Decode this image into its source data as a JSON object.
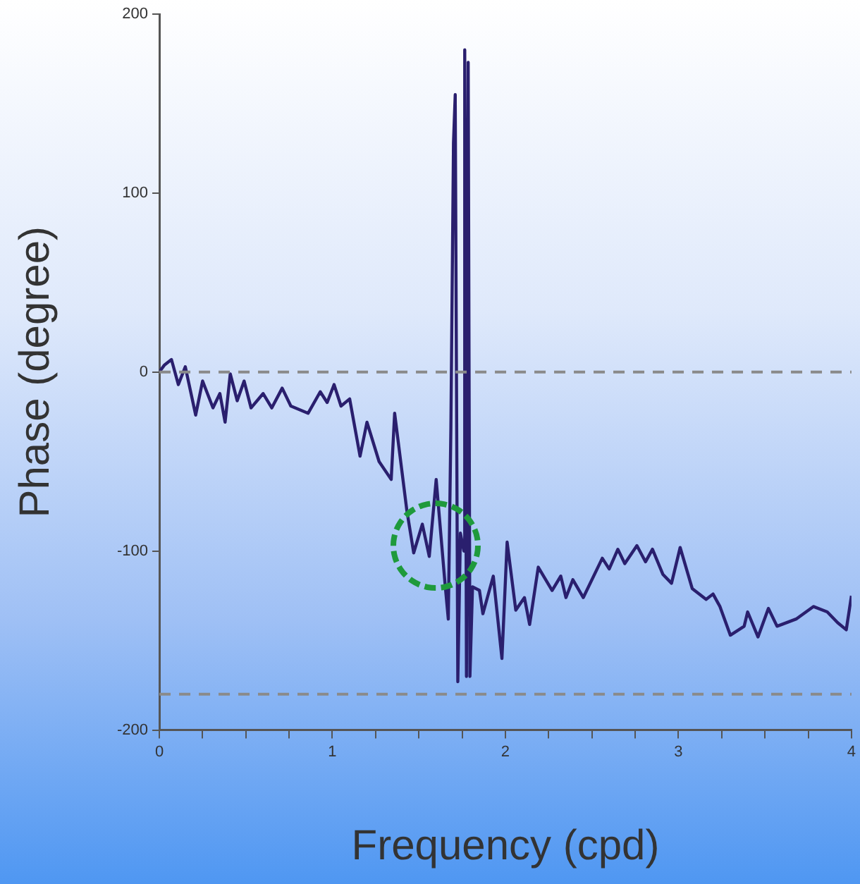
{
  "chart_data": {
    "type": "line",
    "xlabel": "Frequency (cpd)",
    "ylabel": "Phase (degree)",
    "xlim": [
      0,
      4
    ],
    "xticks": [
      0,
      {
        "value": 0.25,
        "label": null
      },
      {
        "value": 0.5,
        "label": null
      },
      {
        "value": 0.75,
        "label": null
      },
      1,
      {
        "value": 1.25,
        "label": null
      },
      {
        "value": 1.5,
        "label": null
      },
      {
        "value": 1.75,
        "label": null
      },
      2,
      {
        "value": 2.25,
        "label": null
      },
      {
        "value": 2.5,
        "label": null
      },
      {
        "value": 2.75,
        "label": null
      },
      3,
      {
        "value": 3.25,
        "label": null
      },
      {
        "value": 3.5,
        "label": null
      },
      {
        "value": 3.75,
        "label": null
      },
      4
    ],
    "ylim": [
      -200,
      200
    ],
    "yticks": [
      -200,
      -100,
      0,
      100,
      200
    ],
    "grid": false,
    "legend": false,
    "marker": "none",
    "line_style": "solid",
    "ref_lines": [
      {
        "axis": "y",
        "value": 0,
        "color": "#8a8a8a",
        "line_style": "dashed"
      },
      {
        "axis": "y",
        "value": -180,
        "color": "#8a8a8a",
        "line_style": "dashed"
      }
    ],
    "series": [
      {
        "color": "#2a1f6e",
        "x": [
          0,
          0.03,
          0.07,
          0.11,
          0.15,
          0.21,
          0.25,
          0.31,
          0.35,
          0.38,
          0.41,
          0.45,
          0.49,
          0.53,
          0.6,
          0.65,
          0.71,
          0.76,
          0.86,
          0.93,
          0.97,
          1.01,
          1.05,
          1.1,
          1.16,
          1.2,
          1.27,
          1.34,
          1.36,
          1.43,
          1.47,
          1.52,
          1.56,
          1.6,
          1.65,
          1.67,
          1.685,
          1.7,
          1.71,
          1.725,
          1.74,
          1.76,
          1.765,
          1.775,
          1.785,
          1.795,
          1.81,
          1.85,
          1.87,
          1.93,
          1.98,
          2.01,
          2.06,
          2.11,
          2.14,
          2.19,
          2.27,
          2.32,
          2.35,
          2.39,
          2.45,
          2.56,
          2.6,
          2.65,
          2.69,
          2.76,
          2.81,
          2.85,
          2.91,
          2.96,
          3.01,
          3.08,
          3.16,
          3.2,
          3.24,
          3.3,
          3.38,
          3.4,
          3.46,
          3.52,
          3.57,
          3.68,
          3.78,
          3.86,
          3.92,
          3.97,
          4.0
        ],
        "values": [
          0,
          4,
          7,
          -7,
          3,
          -24,
          -5,
          -20,
          -12,
          -28,
          -1,
          -16,
          -5,
          -20,
          -12,
          -20,
          -9,
          -19,
          -23,
          -11,
          -17,
          -7,
          -19,
          -15,
          -47,
          -28,
          -50,
          -60,
          -23,
          -77,
          -101,
          -85,
          -103,
          -60,
          -117,
          -138,
          -31,
          128,
          155,
          -173,
          -90,
          -100,
          180,
          -170,
          173,
          -170,
          -120,
          -122,
          -135,
          -114,
          -160,
          -95,
          -133,
          -126,
          -141,
          -109,
          -122,
          -114,
          -126,
          -116,
          -126,
          -104,
          -110,
          -99,
          -107,
          -97,
          -106,
          -99,
          -113,
          -118,
          -98,
          -121,
          -127,
          -124,
          -131,
          -147,
          -142,
          -134,
          -148,
          -132,
          -142,
          -138,
          -131,
          -134,
          -140,
          -144,
          -125
        ]
      }
    ]
  }
}
